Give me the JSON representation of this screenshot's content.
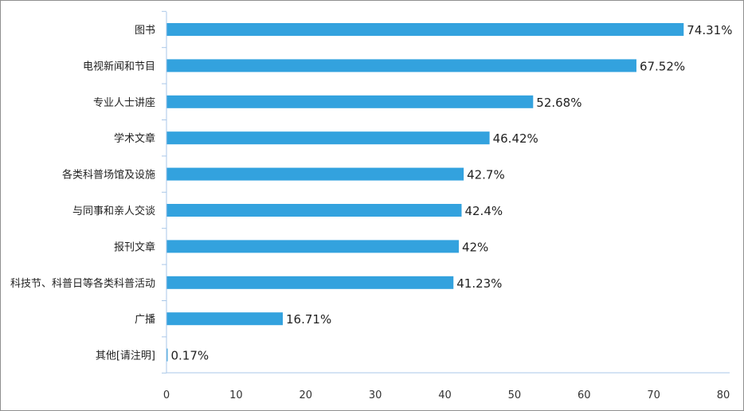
{
  "chart_data": {
    "type": "bar",
    "orientation": "horizontal",
    "title": "",
    "xlabel": "",
    "ylabel": "",
    "categories": [
      "图书",
      "电视新闻和节目",
      "专业人士讲座",
      "学术文章",
      "各类科普场馆及设施",
      "与同事和亲人交谈",
      "报刊文章",
      "科技节、科普日等各类科普活动",
      "广播",
      "其他[请注明]"
    ],
    "values": [
      74.31,
      67.52,
      52.68,
      46.42,
      42.7,
      42.4,
      42,
      41.23,
      16.71,
      0.17
    ],
    "value_labels": [
      "74.31%",
      "67.52%",
      "52.68%",
      "46.42%",
      "42.7%",
      "42.4%",
      "42%",
      "41.23%",
      "16.71%",
      "0.17%"
    ],
    "xlim": [
      0,
      80
    ],
    "xticks": [
      0,
      10,
      20,
      30,
      40,
      50,
      60,
      70,
      80
    ],
    "grid": false,
    "legend": "none",
    "colors": {
      "bar": "#33a2de",
      "axis": "#a9c7e8",
      "frame": "#8f8f8f",
      "text": "#222222"
    }
  }
}
